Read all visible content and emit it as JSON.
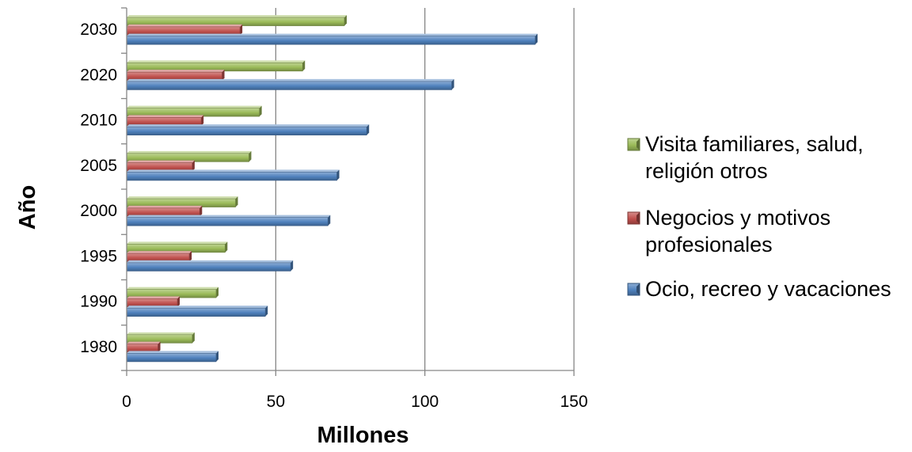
{
  "chart_data": {
    "type": "bar",
    "orientation": "horizontal",
    "categories": [
      "1980",
      "1990",
      "1995",
      "2000",
      "2005",
      "2010",
      "2020",
      "2030"
    ],
    "series": [
      {
        "name": "Visita familiares, salud, religión otros",
        "color": "#9BBB59",
        "values": [
          22,
          30,
          33,
          36.5,
          41,
          44.5,
          59,
          73
        ]
      },
      {
        "name": "Negocios y motivos profesionales",
        "color": "#C0504D",
        "values": [
          10.5,
          17,
          21,
          24.5,
          22,
          25,
          32,
          38
        ]
      },
      {
        "name": "Ocio, recreo y vacaciones",
        "color": "#4F81BD",
        "values": [
          30,
          46.5,
          55,
          67.5,
          70.5,
          80.5,
          109,
          137
        ]
      }
    ],
    "legend_lines": [
      [
        "Visita familiares, salud,",
        "religión otros"
      ],
      [
        "Negocios y motivos",
        "profesionales"
      ],
      [
        "Ocio, recreo y vacaciones"
      ]
    ],
    "legend_position": "right",
    "xlabel": "Millones",
    "ylabel": "Año",
    "xlim": [
      0,
      150
    ],
    "xticks": [
      0,
      50,
      100,
      150
    ],
    "grid": true
  }
}
